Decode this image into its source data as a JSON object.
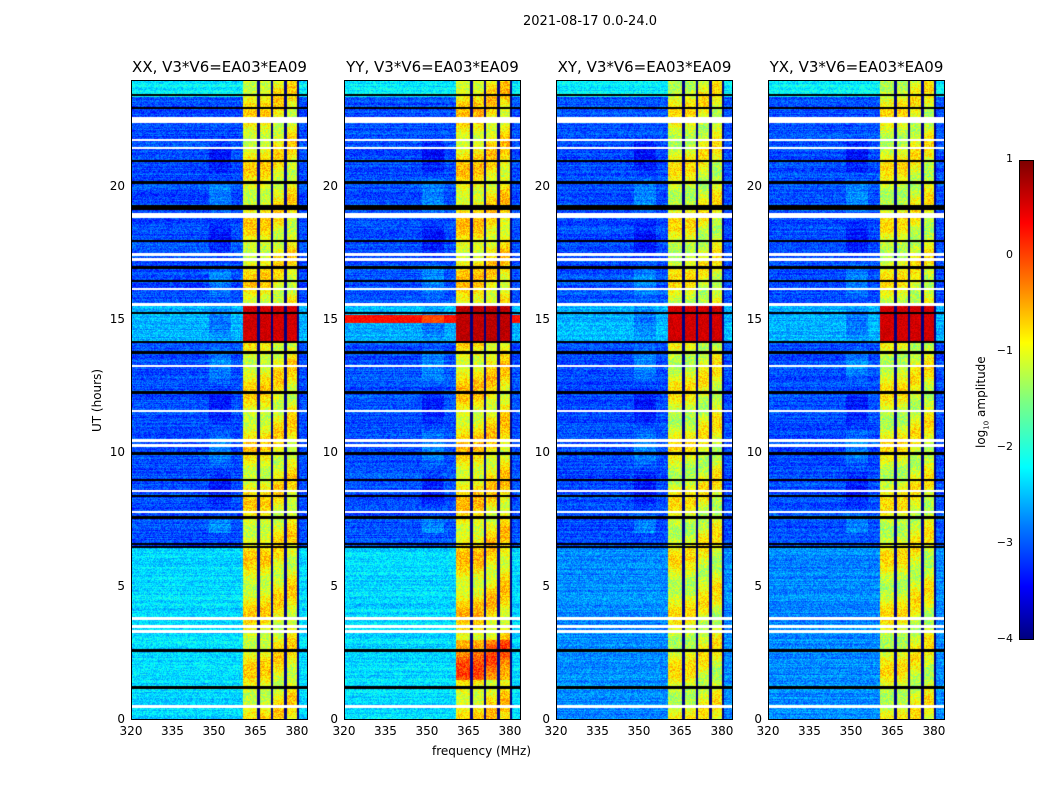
{
  "suptitle": "2021-08-17 0.0-24.0",
  "xlabel": "frequency (MHz)",
  "ylabel": "UT (hours)",
  "colorbar": {
    "label": "log10 amplitude",
    "label_base": "log",
    "label_sub": "10",
    "label_rest": " amplitude",
    "ticks": [
      "1",
      "0",
      "−1",
      "−2",
      "−3",
      "−4"
    ],
    "range": [
      -4,
      1
    ]
  },
  "chart_data": {
    "type": "heatmap",
    "xlim": [
      320,
      384
    ],
    "ylim": [
      0,
      24
    ],
    "xticks": [
      320,
      335,
      350,
      365,
      380
    ],
    "xtick_labels": [
      "320",
      "335",
      "350",
      "365",
      "380"
    ],
    "yticks": [
      0,
      5,
      10,
      15,
      20
    ],
    "ytick_labels": [
      "0",
      "5",
      "10",
      "15",
      "20"
    ],
    "colormap": "jet",
    "vmin": -4,
    "vmax": 1,
    "signal_bands_mhz": [
      [
        360.5,
        365.5
      ],
      [
        366.5,
        370.5
      ],
      [
        371.5,
        375.5
      ],
      [
        376.5,
        380
      ]
    ],
    "flagged_white_hours": [
      0.5,
      3.3,
      3.5,
      3.8,
      7.8,
      8.6,
      10.3,
      10.5,
      11.6,
      13.3,
      15.6,
      16.2,
      17.3,
      17.5,
      18.9,
      19.0,
      21.5,
      21.8,
      22.5,
      22.6
    ],
    "flagged_black_hours": [
      1.2,
      2.6,
      6.5,
      6.6,
      7.6,
      8.4,
      9.0,
      10.0,
      12.3,
      13.8,
      14.2,
      15.3,
      16.5,
      17.0,
      18.0,
      19.2,
      19.3,
      20.2,
      21.0,
      23.0,
      23.5
    ],
    "panels": [
      {
        "title": "XX, V3*V6=EA03*EA09",
        "low_background": -2.3,
        "high_background": -3.0,
        "signal_level": -0.9,
        "flare_level": 0.6
      },
      {
        "title": "YY, V3*V6=EA03*EA09",
        "low_background": -2.3,
        "high_background": -3.0,
        "signal_level": -0.8,
        "flare_level": 0.7
      },
      {
        "title": "XY, V3*V6=EA03*EA09",
        "low_background": -2.7,
        "high_background": -3.0,
        "signal_level": -1.0,
        "flare_level": 0.6
      },
      {
        "title": "YX, V3*V6=EA03*EA09",
        "low_background": -2.7,
        "high_background": -3.0,
        "signal_level": -1.0,
        "flare_level": 0.6
      }
    ]
  }
}
